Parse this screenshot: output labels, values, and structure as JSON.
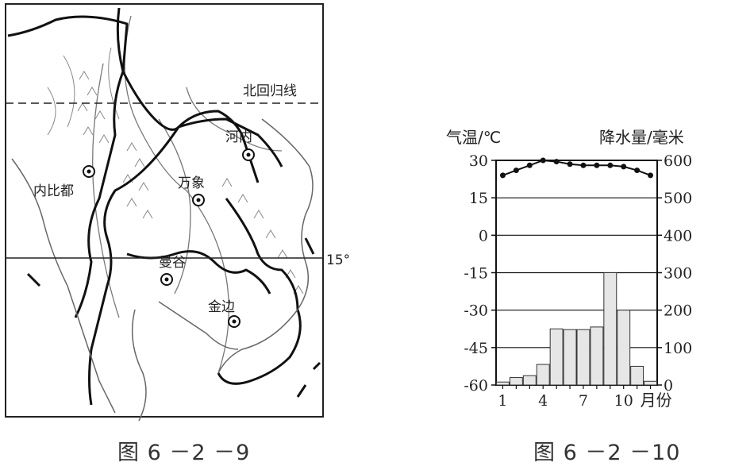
{
  "map": {
    "cities": [
      {
        "name": "内比都",
        "x": 112,
        "y": 216,
        "lx": 42,
        "ly": 246
      },
      {
        "name": "万象",
        "x": 250,
        "y": 252,
        "lx": 224,
        "ly": 236
      },
      {
        "name": "河内",
        "x": 313,
        "y": 195,
        "lx": 284,
        "ly": 178
      },
      {
        "name": "曼谷",
        "x": 210,
        "y": 352,
        "lx": 200,
        "ly": 336
      },
      {
        "name": "金边",
        "x": 295,
        "y": 405,
        "lx": 262,
        "ly": 392
      }
    ],
    "tropic_label": "北回归线",
    "lat_label": "15°"
  },
  "captions": {
    "left": "图 6 －2 －9",
    "right": "图 6 －2 －10"
  },
  "chart_data": {
    "type": "bar+line",
    "left_axis_title": "气温/℃",
    "right_axis_title": "降水量/毫米",
    "x_axis_unit": "月份",
    "months": [
      1,
      2,
      3,
      4,
      5,
      6,
      7,
      8,
      9,
      10,
      11,
      12
    ],
    "x_tick_labels": [
      "1",
      "4",
      "7",
      "10"
    ],
    "temp_ticks": [
      "30",
      "15",
      "0",
      "-15",
      "-30",
      "-45",
      "-60"
    ],
    "precip_ticks": [
      "600",
      "500",
      "400",
      "300",
      "200",
      "100",
      "0"
    ],
    "temp_range": [
      -60,
      30
    ],
    "precip_range": [
      0,
      600
    ],
    "series": [
      {
        "name": "气温",
        "kind": "line",
        "axis": "left",
        "values": [
          24,
          26,
          28,
          30,
          29.5,
          28.5,
          28,
          28,
          28,
          27.5,
          26,
          24
        ]
      },
      {
        "name": "降水量",
        "kind": "bar",
        "axis": "right",
        "values": [
          8,
          20,
          25,
          55,
          150,
          148,
          148,
          155,
          300,
          200,
          50,
          10
        ]
      }
    ]
  }
}
